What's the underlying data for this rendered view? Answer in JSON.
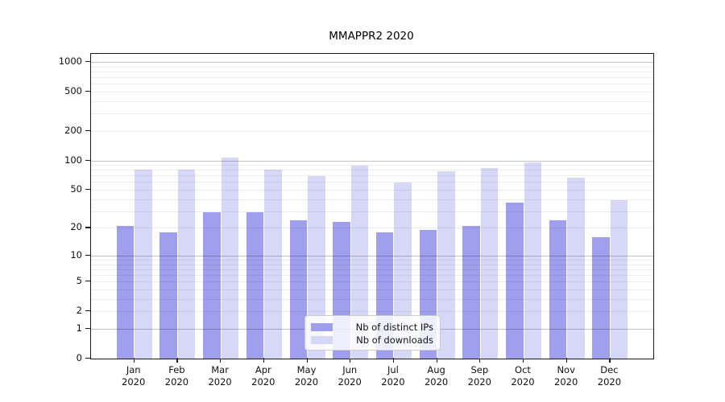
{
  "title": "MMAPPR2 2020",
  "colors": {
    "distinct_ips_bar": "#9f9fee",
    "downloads_bar": "#d7d7f8",
    "axis": "#1a1a1a",
    "major_grid": "#c4c4c4",
    "minor_grid": "#ececec",
    "legend_border": "#cccccc"
  },
  "legend": {
    "items": [
      {
        "label": "Nb of distinct IPs",
        "color": "#9f9fee"
      },
      {
        "label": "Nb of downloads",
        "color": "#d7d7f8"
      }
    ]
  },
  "chart_data": {
    "type": "bar",
    "title": "MMAPPR2 2020",
    "categories": [
      "Jan 2020",
      "Feb 2020",
      "Mar 2020",
      "Apr 2020",
      "May 2020",
      "Jun 2020",
      "Jul 2020",
      "Aug 2020",
      "Sep 2020",
      "Oct 2020",
      "Nov 2020",
      "Dec 2020"
    ],
    "series": [
      {
        "name": "Nb of distinct IPs",
        "color": "#9f9fee",
        "values": [
          21,
          18,
          29,
          29,
          24,
          23,
          18,
          19,
          21,
          37,
          24,
          16
        ]
      },
      {
        "name": "Nb of downloads",
        "color": "#d7d7f8",
        "values": [
          81,
          81,
          107,
          81,
          69,
          88,
          59,
          77,
          84,
          96,
          67,
          39
        ]
      }
    ],
    "xlabel": "",
    "ylabel": "",
    "yscale": "log1p",
    "ylim": [
      0,
      1200
    ],
    "yticks": [
      0,
      1,
      2,
      5,
      10,
      20,
      50,
      100,
      200,
      500,
      1000
    ],
    "grid": true,
    "grid_position": "above-bars",
    "major_grid_at": [
      1,
      10,
      100,
      1000
    ],
    "legend_position": "lower center"
  }
}
